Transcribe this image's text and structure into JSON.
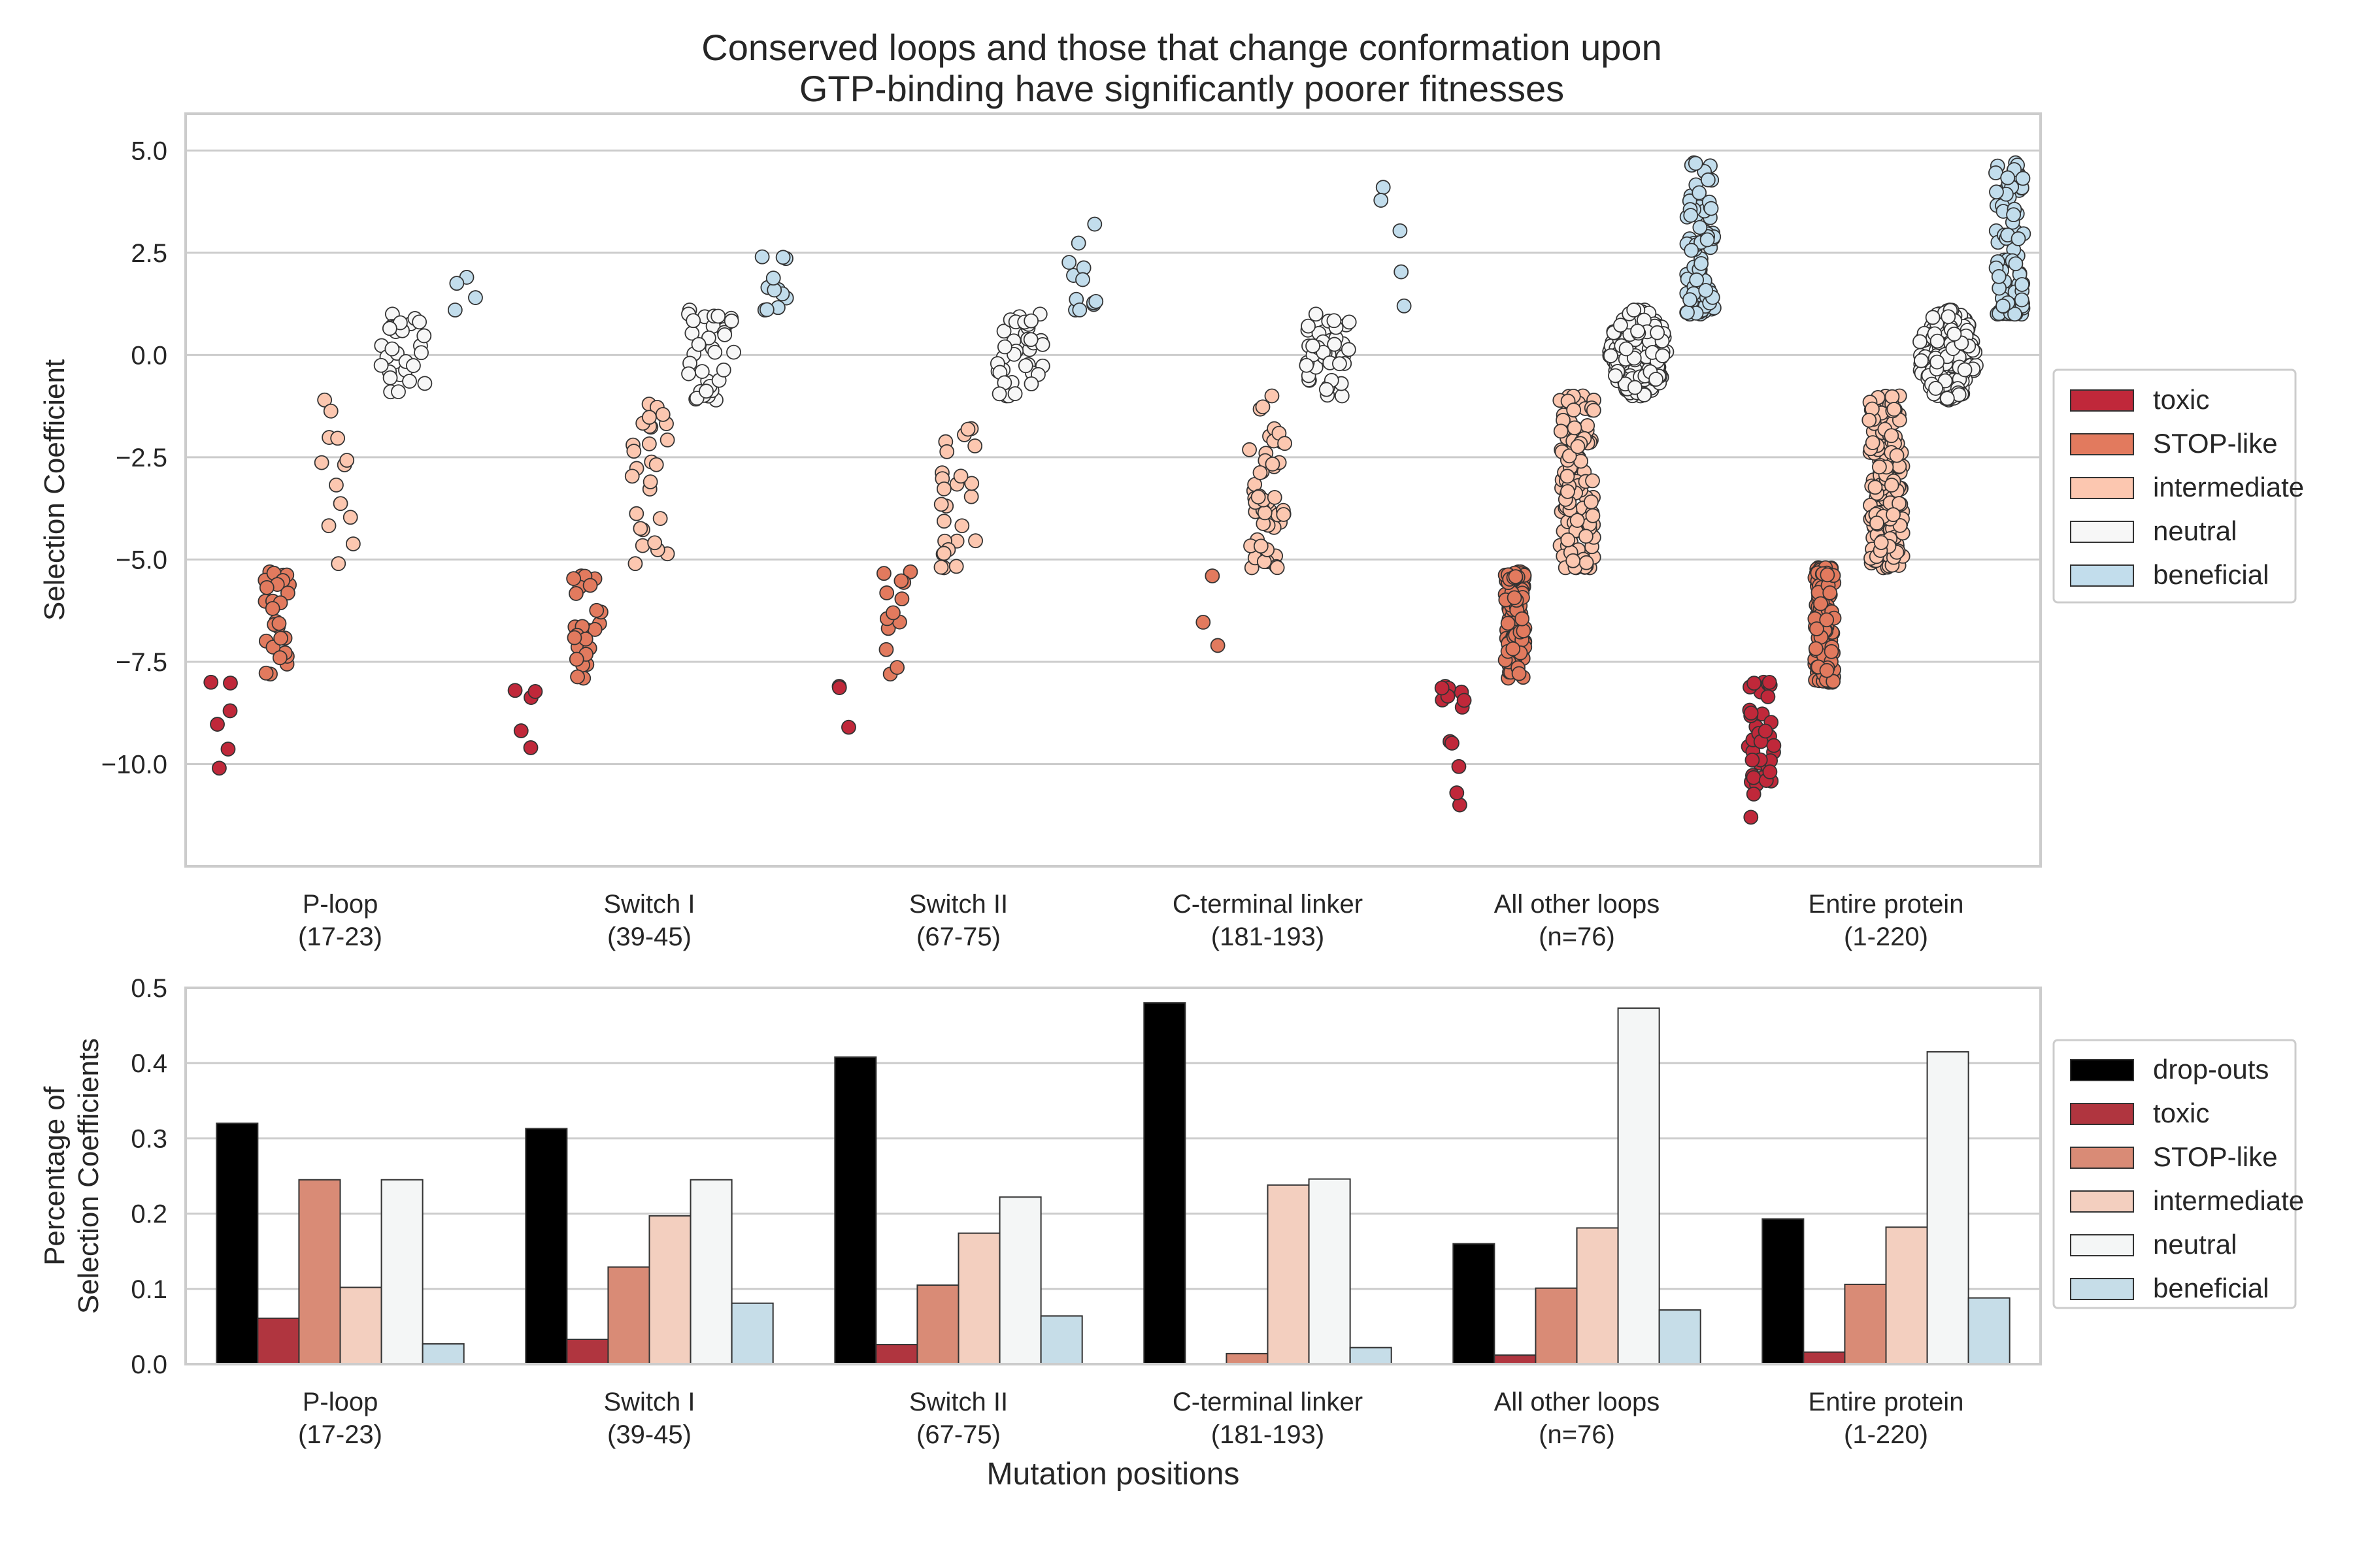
{
  "chart_data": [
    {
      "type": "strip",
      "title": [
        "Conserved loops and those that change conformation upon",
        "GTP-binding have significantly poorer fitnesses"
      ],
      "ylabel": "Selection Coefficient",
      "ylim": [
        -12.5,
        5.9
      ],
      "yticks": [
        5.0,
        2.5,
        0.0,
        -2.5,
        -5.0,
        -7.5,
        -10.0
      ],
      "ytick_labels": [
        "5.0",
        "2.5",
        "0.0",
        "−2.5",
        "−5.0",
        "−7.5",
        "−10.0"
      ],
      "grid": true,
      "legend_position": "right",
      "categories": [
        [
          "P-loop",
          "(17-23)"
        ],
        [
          "Switch I",
          "(39-45)"
        ],
        [
          "Switch II",
          "(67-75)"
        ],
        [
          "C-terminal linker",
          "(181-193)"
        ],
        [
          "All other loops",
          "(n=76)"
        ],
        [
          "Entire protein",
          "(1-220)"
        ]
      ],
      "series": [
        {
          "name": "toxic",
          "color": "#c0283a"
        },
        {
          "name": "STOP-like",
          "color": "#e27a5e"
        },
        {
          "name": "intermediate",
          "color": "#fcc7b0"
        },
        {
          "name": "neutral",
          "color": "#f7f7f7"
        },
        {
          "name": "beneficial",
          "color": "#c2ddec"
        }
      ],
      "ranges": [
        [
          [
            -10.1,
            -8.0
          ],
          [
            -7.8,
            -5.3
          ],
          [
            -5.1,
            -1.1
          ],
          [
            -0.9,
            1.0
          ],
          [
            1.1,
            1.9
          ]
        ],
        [
          [
            -9.6,
            -8.2
          ],
          [
            -7.9,
            -5.4
          ],
          [
            -5.1,
            -1.2
          ],
          [
            -1.1,
            1.1
          ],
          [
            1.1,
            2.4
          ]
        ],
        [
          [
            -9.1,
            -8.1
          ],
          [
            -7.8,
            -5.3
          ],
          [
            -5.2,
            -1.8
          ],
          [
            -1.0,
            1.0
          ],
          [
            1.1,
            3.2
          ]
        ],
        [
          [],
          [
            -7.1,
            -5.4
          ],
          [
            -5.2,
            -1.0
          ],
          [
            -1.0,
            1.0
          ],
          [
            1.2,
            4.1
          ]
        ],
        [
          [
            -11.0,
            -8.1
          ],
          [
            -7.9,
            -5.3
          ],
          [
            -5.2,
            -1.0
          ],
          [
            -1.0,
            1.1
          ],
          [
            1.0,
            4.7
          ]
        ],
        [
          [
            -11.3,
            -8.0
          ],
          [
            -8.0,
            -5.2
          ],
          [
            -5.2,
            -1.0
          ],
          [
            -1.1,
            1.1
          ],
          [
            1.0,
            4.7
          ]
        ]
      ],
      "counts": [
        [
          6,
          28,
          13,
          28,
          4
        ],
        [
          5,
          28,
          27,
          35,
          12
        ],
        [
          3,
          13,
          26,
          38,
          12
        ],
        [
          0,
          3,
          50,
          42,
          5
        ],
        [
          14,
          120,
          140,
          200,
          90
        ],
        [
          40,
          150,
          170,
          200,
          100
        ]
      ]
    },
    {
      "type": "bar",
      "xlabel": "Mutation positions",
      "ylabel": [
        "Percentage of",
        "Selection Coefficients"
      ],
      "ylim": [
        0,
        0.5
      ],
      "yticks": [
        0.0,
        0.1,
        0.2,
        0.3,
        0.4,
        0.5
      ],
      "ytick_labels": [
        "0.0",
        "0.1",
        "0.2",
        "0.3",
        "0.4",
        "0.5"
      ],
      "grid": true,
      "legend_position": "right",
      "categories": [
        [
          "P-loop",
          "(17-23)"
        ],
        [
          "Switch I",
          "(39-45)"
        ],
        [
          "Switch II",
          "(67-75)"
        ],
        [
          "C-terminal linker",
          "(181-193)"
        ],
        [
          "All other loops",
          "(n=76)"
        ],
        [
          "Entire protein",
          "(1-220)"
        ]
      ],
      "series": [
        {
          "name": "drop-outs",
          "color": "#000000",
          "values": [
            0.32,
            0.313,
            0.408,
            0.48,
            0.16,
            0.193
          ]
        },
        {
          "name": "toxic",
          "color": "#b0353f",
          "values": [
            0.061,
            0.033,
            0.026,
            0.0,
            0.012,
            0.016
          ]
        },
        {
          "name": "STOP-like",
          "color": "#d98b76",
          "values": [
            0.245,
            0.129,
            0.105,
            0.014,
            0.101,
            0.106
          ]
        },
        {
          "name": "intermediate",
          "color": "#f3cfbf",
          "values": [
            0.102,
            0.197,
            0.174,
            0.238,
            0.181,
            0.182
          ]
        },
        {
          "name": "neutral",
          "color": "#f4f6f6",
          "values": [
            0.245,
            0.245,
            0.222,
            0.246,
            0.473,
            0.415
          ]
        },
        {
          "name": "beneficial",
          "color": "#c6dde8",
          "values": [
            0.027,
            0.081,
            0.064,
            0.022,
            0.072,
            0.088
          ]
        }
      ]
    }
  ]
}
